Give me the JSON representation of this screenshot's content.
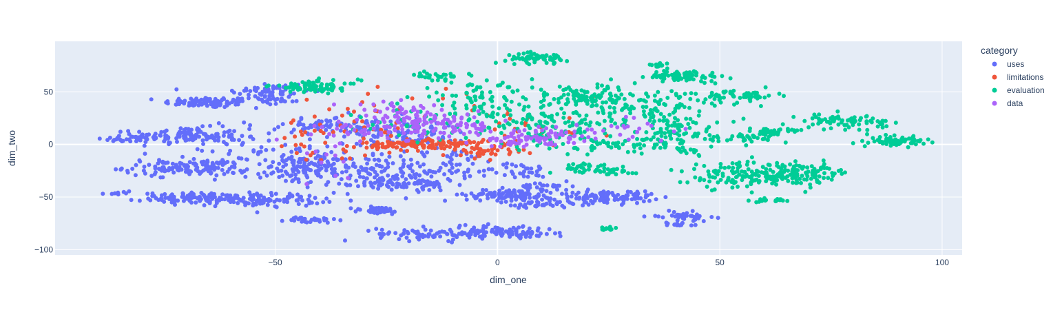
{
  "chart_data": {
    "type": "scatter",
    "xlabel": "dim_one",
    "ylabel": "dim_two",
    "xlim": [
      -99.5,
      104.5
    ],
    "ylim": [
      -105,
      98
    ],
    "x_ticks": [
      -50,
      0,
      50,
      100
    ],
    "y_ticks": [
      -100,
      -50,
      0,
      50
    ],
    "x_tick_labels": [
      "−50",
      "0",
      "50",
      "100"
    ],
    "y_tick_labels": [
      "−100",
      "−50",
      "0",
      "50"
    ],
    "grid": true,
    "legend": {
      "title": "category",
      "position": "right"
    },
    "series": [
      {
        "name": "uses",
        "color": "#636efa",
        "clusters": [
          {
            "cx": -65,
            "cy": 40,
            "sx": 5,
            "sy": 2.5,
            "n": 90
          },
          {
            "cx": -52,
            "cy": 50,
            "sx": 5,
            "sy": 5,
            "n": 55
          },
          {
            "cx": -83,
            "cy": 5,
            "sx": 3,
            "sy": 1.5,
            "n": 25
          },
          {
            "cx": -70,
            "cy": 8,
            "sx": 6,
            "sy": 4,
            "n": 130
          },
          {
            "cx": -70,
            "cy": -22,
            "sx": 7,
            "sy": 4,
            "n": 130
          },
          {
            "cx": -66,
            "cy": -51,
            "sx": 7,
            "sy": 2.5,
            "n": 120
          },
          {
            "cx": -51,
            "cy": -53,
            "sx": 6,
            "sy": 3,
            "n": 80
          },
          {
            "cx": -85,
            "cy": -46,
            "sx": 1.5,
            "sy": 1,
            "n": 8
          },
          {
            "cx": -45,
            "cy": -25,
            "sx": 6,
            "sy": 7,
            "n": 80
          },
          {
            "cx": -42,
            "cy": -15,
            "sx": 5,
            "sy": 6,
            "n": 40
          },
          {
            "cx": -40,
            "cy": 18,
            "sx": 4,
            "sy": 3,
            "n": 40
          },
          {
            "cx": -42,
            "cy": -72,
            "sx": 3,
            "sy": 1.5,
            "n": 30
          },
          {
            "cx": -28,
            "cy": -25,
            "sx": 8,
            "sy": 10,
            "n": 130
          },
          {
            "cx": -20,
            "cy": -38,
            "sx": 5,
            "sy": 3,
            "n": 60
          },
          {
            "cx": -27,
            "cy": -63,
            "sx": 3,
            "sy": 2,
            "n": 35
          },
          {
            "cx": -10,
            "cy": -20,
            "sx": 6,
            "sy": 8,
            "n": 60
          },
          {
            "cx": -18,
            "cy": 10,
            "sx": 6,
            "sy": 6,
            "n": 60
          },
          {
            "cx": -30,
            "cy": 15,
            "sx": 6,
            "sy": 7,
            "n": 60
          },
          {
            "cx": -15,
            "cy": -85,
            "sx": 6,
            "sy": 3,
            "n": 70
          },
          {
            "cx": -3,
            "cy": -83,
            "sx": 4,
            "sy": 3,
            "n": 40
          },
          {
            "cx": 5,
            "cy": -84,
            "sx": 4,
            "sy": 2.5,
            "n": 60
          },
          {
            "cx": 3,
            "cy": -48,
            "sx": 5,
            "sy": 3,
            "n": 120
          },
          {
            "cx": 9,
            "cy": -57,
            "sx": 4,
            "sy": 2.5,
            "n": 40
          },
          {
            "cx": 11,
            "cy": -40,
            "sx": 3,
            "sy": 2,
            "n": 25
          },
          {
            "cx": 25,
            "cy": -50,
            "sx": 5,
            "sy": 3,
            "n": 110
          },
          {
            "cx": 42,
            "cy": -68,
            "sx": 3,
            "sy": 2,
            "n": 40
          },
          {
            "cx": 41,
            "cy": -76,
            "sx": 2,
            "sy": 1,
            "n": 15
          },
          {
            "cx": 5,
            "cy": -25,
            "sx": 3,
            "sy": 4,
            "n": 30
          },
          {
            "cx": -55,
            "cy": 0,
            "sx": 8,
            "sy": 12,
            "n": 50
          },
          {
            "cx": -50,
            "cy": 42,
            "sx": 3,
            "sy": 3,
            "n": 20
          }
        ]
      },
      {
        "name": "limitations",
        "color": "#ef553b",
        "clusters": [
          {
            "cx": -16,
            "cy": 0,
            "sx": 7,
            "sy": 3,
            "n": 120
          },
          {
            "cx": -2,
            "cy": -6,
            "sx": 4,
            "sy": 3,
            "n": 40
          },
          {
            "cx": -30,
            "cy": 15,
            "sx": 10,
            "sy": 15,
            "n": 40
          },
          {
            "cx": 5,
            "cy": 15,
            "sx": 10,
            "sy": 10,
            "n": 20
          },
          {
            "cx": -20,
            "cy": 40,
            "sx": 15,
            "sy": 10,
            "n": 15
          },
          {
            "cx": -45,
            "cy": 0,
            "sx": 8,
            "sy": 12,
            "n": 15
          }
        ]
      },
      {
        "name": "evaluation",
        "color": "#00cc96",
        "clusters": [
          {
            "cx": 9,
            "cy": 82,
            "sx": 3.5,
            "sy": 2.5,
            "n": 60
          },
          {
            "cx": 42,
            "cy": 65,
            "sx": 4,
            "sy": 2.5,
            "n": 80
          },
          {
            "cx": 36,
            "cy": 75,
            "sx": 2,
            "sy": 1.5,
            "n": 15
          },
          {
            "cx": 55,
            "cy": 47,
            "sx": 4,
            "sy": 2.5,
            "n": 50
          },
          {
            "cx": 20,
            "cy": 45,
            "sx": 8,
            "sy": 6,
            "n": 110
          },
          {
            "cx": 35,
            "cy": 35,
            "sx": 8,
            "sy": 8,
            "n": 90
          },
          {
            "cx": 15,
            "cy": 15,
            "sx": 10,
            "sy": 10,
            "n": 110
          },
          {
            "cx": 40,
            "cy": 10,
            "sx": 7,
            "sy": 10,
            "n": 90
          },
          {
            "cx": -41,
            "cy": 55,
            "sx": 5,
            "sy": 3,
            "n": 80
          },
          {
            "cx": -13,
            "cy": 65,
            "sx": 3,
            "sy": 2,
            "n": 30
          },
          {
            "cx": -5,
            "cy": 45,
            "sx": 7,
            "sy": 6,
            "n": 60
          },
          {
            "cx": 0,
            "cy": 25,
            "sx": 8,
            "sy": 8,
            "n": 60
          },
          {
            "cx": 55,
            "cy": -30,
            "sx": 6,
            "sy": 6,
            "n": 120
          },
          {
            "cx": 68,
            "cy": -28,
            "sx": 6,
            "sy": 5,
            "n": 110
          },
          {
            "cx": 61,
            "cy": -53,
            "sx": 3,
            "sy": 1,
            "n": 20
          },
          {
            "cx": 90,
            "cy": 3,
            "sx": 3,
            "sy": 2,
            "n": 70
          },
          {
            "cx": 78,
            "cy": 22,
            "sx": 5,
            "sy": 3.5,
            "n": 70
          },
          {
            "cx": 63,
            "cy": 12,
            "sx": 3,
            "sy": 2,
            "n": 30
          },
          {
            "cx": 57,
            "cy": 7,
            "sx": 3,
            "sy": 2.5,
            "n": 30
          },
          {
            "cx": 19,
            "cy": -22,
            "sx": 3,
            "sy": 2,
            "n": 30
          },
          {
            "cx": 25,
            "cy": -25,
            "sx": 3,
            "sy": 2,
            "n": 25
          },
          {
            "cx": 24,
            "cy": -80,
            "sx": 1.5,
            "sy": 1,
            "n": 12
          },
          {
            "cx": 44,
            "cy": -6,
            "sx": 2,
            "sy": 1.5,
            "n": 12
          },
          {
            "cx": 28,
            "cy": 0,
            "sx": 5,
            "sy": 4,
            "n": 40
          },
          {
            "cx": -20,
            "cy": 20,
            "sx": 6,
            "sy": 8,
            "n": 25
          }
        ]
      },
      {
        "name": "data",
        "color": "#ab63fa",
        "clusters": [
          {
            "cx": -17,
            "cy": 22,
            "sx": 6,
            "sy": 6,
            "n": 90
          },
          {
            "cx": -28,
            "cy": 12,
            "sx": 6,
            "sy": 5,
            "n": 40
          },
          {
            "cx": -6,
            "cy": 15,
            "sx": 5,
            "sy": 5,
            "n": 40
          },
          {
            "cx": 7,
            "cy": 3,
            "sx": 5,
            "sy": 3,
            "n": 50
          },
          {
            "cx": 13,
            "cy": 10,
            "sx": 4,
            "sy": 3,
            "n": 25
          },
          {
            "cx": 30,
            "cy": 15,
            "sx": 8,
            "sy": 6,
            "n": 25
          },
          {
            "cx": -25,
            "cy": 35,
            "sx": 6,
            "sy": 4,
            "n": 20
          },
          {
            "cx": -40,
            "cy": -20,
            "sx": 5,
            "sy": 10,
            "n": 10
          }
        ]
      }
    ]
  }
}
